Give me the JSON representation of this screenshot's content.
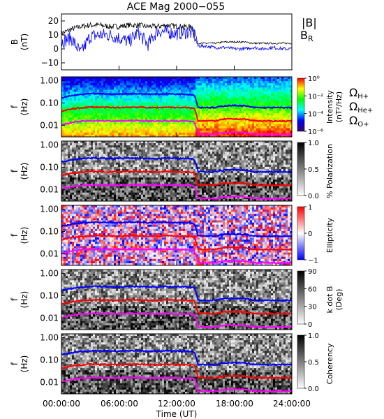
{
  "chart_data": {
    "title": "ACE Mag 2000−055",
    "x_ticks": [
      "00:00:00",
      "06:00:00",
      "12:00:00",
      "18:00:00",
      "24:00:00"
    ],
    "x_tick_hours": [
      0,
      6,
      12,
      18,
      24
    ],
    "xlabel": "Time (UT)",
    "xlim": [
      0,
      24
    ],
    "panels": [
      {
        "type": "line",
        "ylabel": "B",
        "ylabel_unit": "(nT)",
        "y_ticks": [
          "20",
          "10",
          "0",
          "−10"
        ],
        "y_tick_values": [
          20,
          10,
          0,
          -10
        ],
        "ylim": [
          -15,
          25
        ],
        "series": [
          {
            "name": "|B|",
            "color": "#000000",
            "x": [
              0,
              1,
              2,
              3,
              4,
              5,
              6,
              7,
              8,
              9,
              10,
              11,
              12,
              13,
              13.8,
              14.2,
              15,
              16,
              17,
              18,
              19,
              20,
              21,
              22,
              23,
              24
            ],
            "y": [
              11,
              14,
              16,
              17,
              17,
              16,
              16,
              17,
              17,
              16,
              16,
              17,
              16,
              16,
              15,
              4,
              4,
              4,
              5,
              5,
              5,
              4,
              4,
              4,
              4,
              4
            ]
          },
          {
            "name": "BR",
            "color": "#0000ff",
            "x": [
              0,
              1,
              2,
              3,
              4,
              5,
              6,
              7,
              8,
              9,
              10,
              11,
              12,
              13,
              13.8,
              14.2,
              15,
              16,
              17,
              18,
              19,
              20,
              21,
              22,
              23,
              24
            ],
            "y": [
              5,
              8,
              -3,
              9,
              10,
              10,
              8,
              5,
              12,
              3,
              13,
              12,
              11,
              12,
              11,
              2,
              2,
              1,
              1,
              0,
              0,
              1,
              0,
              1,
              0,
              0
            ]
          }
        ]
      },
      {
        "type": "heatmap",
        "ylabel": "f",
        "ylabel_unit": "(Hz)",
        "y_ticks": [
          "1.00",
          "0.10",
          "0.01"
        ],
        "colorbar": {
          "type": "rainbow",
          "ticks": [
            "10⁰",
            "10⁻²",
            "10⁻⁴",
            "10⁻⁶"
          ],
          "label": "Intensity",
          "label_unit": "(nT²/Hz)"
        },
        "legend": [
          {
            "label": "Ω",
            "sub": "H+",
            "color": "#0000ff"
          },
          {
            "label": "Ω",
            "sub": "He+",
            "color": "#ff0000"
          },
          {
            "label": "Ω",
            "sub": "O+",
            "color": "#ff00ff"
          }
        ]
      },
      {
        "type": "heatmap",
        "ylabel": "f",
        "ylabel_unit": "(Hz)",
        "y_ticks": [
          "1.00",
          "0.10",
          "0.01"
        ],
        "colorbar": {
          "type": "gray",
          "ticks": [
            "1.0",
            "0.5",
            "0.0"
          ],
          "label": "% Polarization",
          "label_unit": ""
        }
      },
      {
        "type": "heatmap",
        "ylabel": "f",
        "ylabel_unit": "(Hz)",
        "y_ticks": [
          "1.00",
          "0.10",
          "0.01"
        ],
        "colorbar": {
          "type": "bwr",
          "ticks": [
            "1",
            "0",
            "−1"
          ],
          "label": "Ellipticity",
          "label_unit": ""
        }
      },
      {
        "type": "heatmap",
        "ylabel": "f",
        "ylabel_unit": "(Hz)",
        "y_ticks": [
          "1.00",
          "0.10",
          "0.01"
        ],
        "colorbar": {
          "type": "gray_r",
          "ticks": [
            "90",
            "60",
            "30",
            "0"
          ],
          "label": "k dot B",
          "label_unit": "(Deg)"
        }
      },
      {
        "type": "heatmap",
        "ylabel": "f",
        "ylabel_unit": "(Hz)",
        "y_ticks": [
          "1.00",
          "0.10",
          "0.01"
        ],
        "colorbar": {
          "type": "gray",
          "ticks": [
            "1.0",
            "0.5",
            "0.0"
          ],
          "label": "Coherency",
          "label_unit": ""
        }
      }
    ],
    "gyrofrequency_lines": [
      {
        "name": "H+",
        "color": "#0000ff",
        "x": [
          0,
          1,
          2,
          3,
          4,
          5,
          6,
          7,
          8,
          9,
          10,
          11,
          12,
          13,
          13.8,
          14.2,
          15,
          16,
          17,
          18,
          19,
          20,
          21,
          22,
          23,
          24
        ],
        "y": [
          0.17,
          0.21,
          0.24,
          0.26,
          0.26,
          0.25,
          0.25,
          0.26,
          0.26,
          0.25,
          0.25,
          0.26,
          0.25,
          0.25,
          0.23,
          0.063,
          0.063,
          0.062,
          0.075,
          0.077,
          0.075,
          0.063,
          0.062,
          0.062,
          0.062,
          0.062
        ]
      },
      {
        "name": "He+",
        "color": "#ff0000",
        "x": [
          0,
          1,
          2,
          3,
          4,
          5,
          6,
          7,
          8,
          9,
          10,
          11,
          12,
          13,
          13.8,
          14.2,
          15,
          16,
          17,
          18,
          19,
          20,
          21,
          22,
          23,
          24
        ],
        "y": [
          0.042,
          0.053,
          0.06,
          0.065,
          0.065,
          0.062,
          0.062,
          0.065,
          0.065,
          0.062,
          0.062,
          0.065,
          0.062,
          0.062,
          0.058,
          0.016,
          0.016,
          0.0155,
          0.019,
          0.019,
          0.019,
          0.016,
          0.0155,
          0.0155,
          0.0155,
          0.0155
        ]
      },
      {
        "name": "O+",
        "color": "#ff00ff",
        "x": [
          0,
          1,
          2,
          3,
          4,
          5,
          6,
          7,
          8,
          9,
          10,
          11,
          12,
          13,
          13.8,
          14.2,
          15,
          16,
          17,
          18,
          19,
          20,
          21,
          22,
          23,
          24
        ],
        "y": [
          0.0105,
          0.013,
          0.015,
          0.016,
          0.016,
          0.0155,
          0.0155,
          0.016,
          0.016,
          0.0155,
          0.0155,
          0.016,
          0.0155,
          0.0155,
          0.0145,
          0.004,
          0.004,
          0.0039,
          0.0047,
          0.0048,
          0.0047,
          0.004,
          0.0039,
          0.0039,
          0.0039,
          0.0039
        ]
      }
    ]
  }
}
